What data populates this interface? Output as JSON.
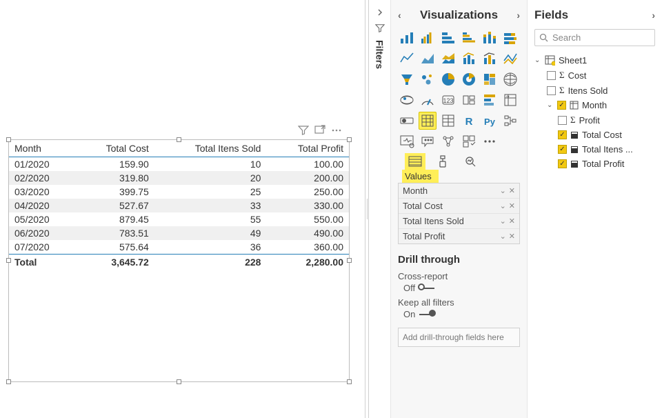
{
  "colors": {
    "highlight": "#ffee58",
    "tableHeaderRule": "#257eb7",
    "altRow": "#f0f0f0",
    "iconBlue": "#257eb7",
    "iconGold": "#d9a400"
  },
  "table": {
    "columns": [
      "Month",
      "Total Cost",
      "Total Itens Sold",
      "Total Profit"
    ],
    "rows": [
      [
        "01/2020",
        "159.90",
        "10",
        "100.00"
      ],
      [
        "02/2020",
        "319.80",
        "20",
        "200.00"
      ],
      [
        "03/2020",
        "399.75",
        "25",
        "250.00"
      ],
      [
        "04/2020",
        "527.67",
        "33",
        "330.00"
      ],
      [
        "05/2020",
        "879.45",
        "55",
        "550.00"
      ],
      [
        "06/2020",
        "783.51",
        "49",
        "490.00"
      ],
      [
        "07/2020",
        "575.64",
        "36",
        "360.00"
      ]
    ],
    "totalLabel": "Total",
    "totals": [
      "3,645.72",
      "228",
      "2,280.00"
    ]
  },
  "filtersPane": {
    "label": "Filters"
  },
  "vizPane": {
    "title": "Visualizations",
    "valuesLabel": "Values",
    "values": [
      "Month",
      "Total Cost",
      "Total Itens Sold",
      "Total Profit"
    ],
    "drill": {
      "title": "Drill through",
      "crossReportLabel": "Cross-report",
      "crossReportState": "Off",
      "keepFiltersLabel": "Keep all filters",
      "keepFiltersState": "On",
      "addPlaceholder": "Add drill-through fields here"
    }
  },
  "fieldsPane": {
    "title": "Fields",
    "searchPlaceholder": "Search",
    "tableName": "Sheet1",
    "fields": [
      {
        "name": "Cost",
        "checked": false,
        "iconType": "sigma"
      },
      {
        "name": "Itens Sold",
        "checked": false,
        "iconType": "sigma"
      },
      {
        "name": "Month",
        "checked": true,
        "iconType": "hierarchy",
        "expandable": true
      },
      {
        "name": "Profit",
        "checked": false,
        "iconType": "sigma",
        "indent": true
      },
      {
        "name": "Total Cost",
        "checked": true,
        "iconType": "measure",
        "indent": true
      },
      {
        "name": "Total Itens ...",
        "checked": true,
        "iconType": "measure",
        "indent": true
      },
      {
        "name": "Total Profit",
        "checked": true,
        "iconType": "measure",
        "indent": true
      }
    ]
  }
}
